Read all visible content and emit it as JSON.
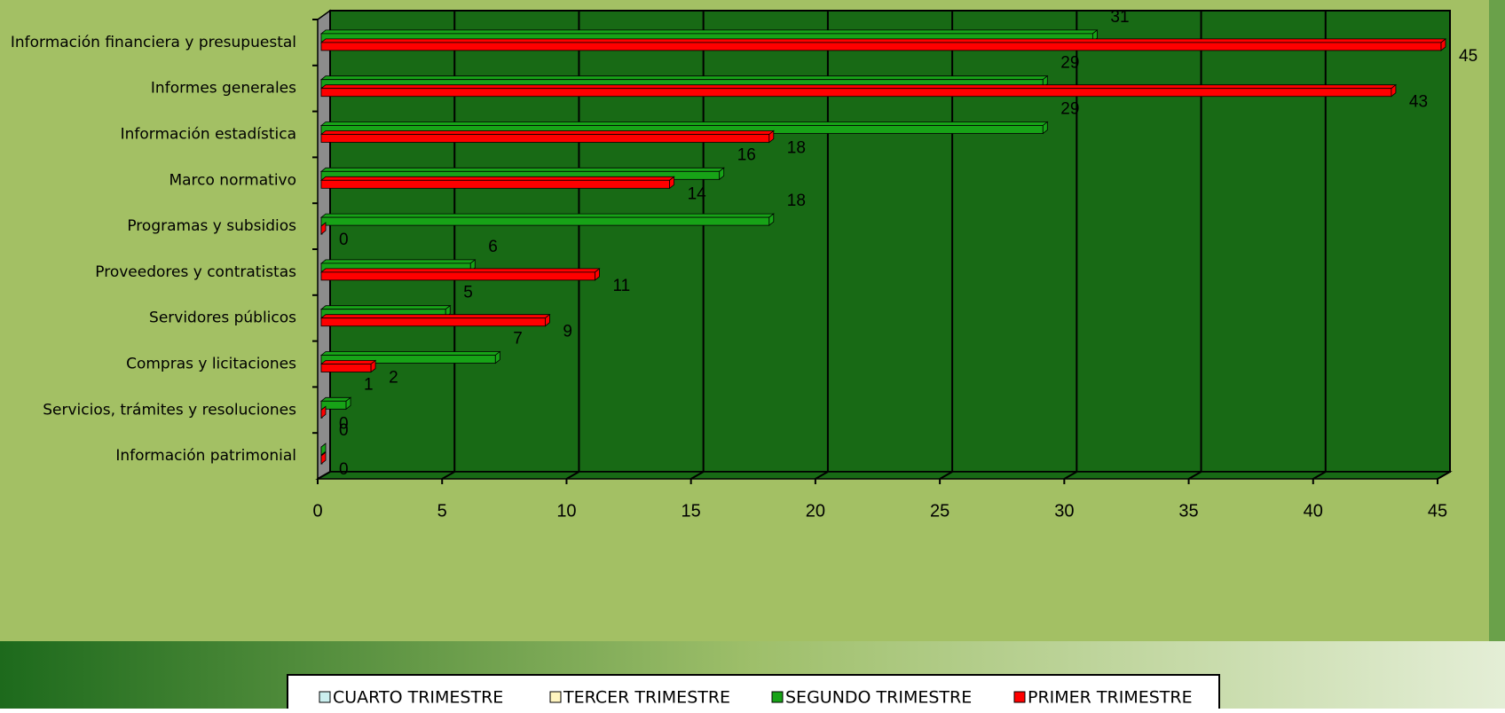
{
  "chart_data": {
    "type": "bar",
    "orientation": "horizontal",
    "categories": [
      "Información financiera y presupuestal",
      "Informes generales",
      "Información estadística",
      "Marco normativo",
      "Programas y subsidios",
      "Proveedores y contratistas",
      "Servidores públicos",
      "Compras y licitaciones",
      "Servicios, trámites y resoluciones",
      "Información patrimonial"
    ],
    "series": [
      {
        "name": "CUARTO TRIMESTRE",
        "color": "#ccf0f0",
        "values": [
          null,
          null,
          null,
          null,
          null,
          null,
          null,
          null,
          null,
          null
        ]
      },
      {
        "name": "TERCER TRIMESTRE",
        "color": "#fff5c0",
        "values": [
          null,
          null,
          null,
          null,
          null,
          null,
          null,
          null,
          null,
          null
        ]
      },
      {
        "name": "SEGUNDO TRIMESTRE",
        "color": "#17a317",
        "values": [
          31,
          29,
          29,
          16,
          18,
          6,
          5,
          7,
          1,
          0
        ]
      },
      {
        "name": "PRIMER TRIMESTRE",
        "color": "#ff0000",
        "values": [
          45,
          43,
          18,
          14,
          0,
          11,
          9,
          2,
          0,
          0
        ]
      }
    ],
    "xlim": [
      0,
      45
    ],
    "xticks": [
      0,
      5,
      10,
      15,
      20,
      25,
      30,
      35,
      40,
      45
    ],
    "grid": true
  }
}
